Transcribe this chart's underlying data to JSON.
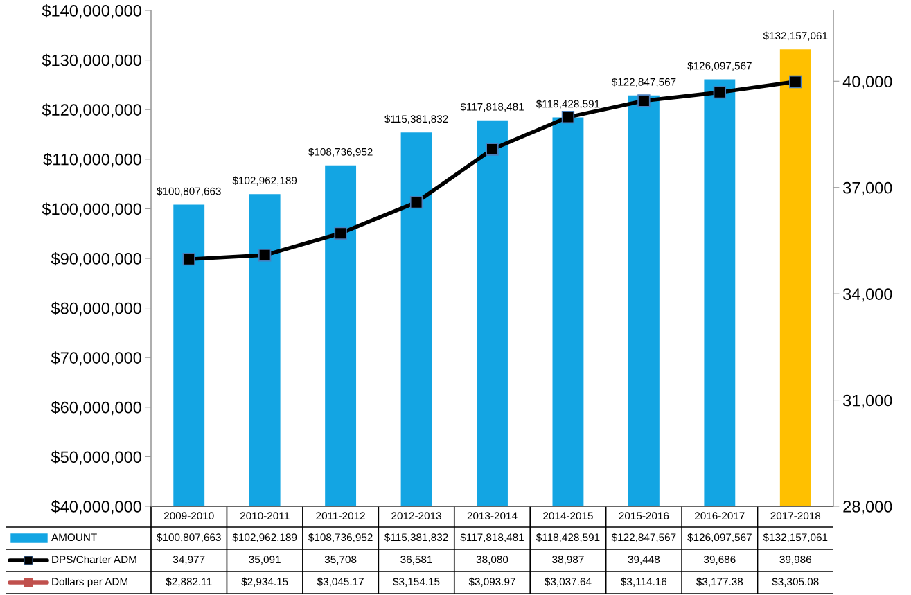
{
  "chart_data": {
    "type": "bar",
    "categories": [
      "2009-2010",
      "2010-2011",
      "2011-2012",
      "2012-2013",
      "2013-2014",
      "2014-2015",
      "2015-2016",
      "2016-2017",
      "2017-2018"
    ],
    "series": [
      {
        "name": "AMOUNT",
        "color": "#13a5e3",
        "colors": [
          "#13a5e3",
          "#13a5e3",
          "#13a5e3",
          "#13a5e3",
          "#13a5e3",
          "#13a5e3",
          "#13a5e3",
          "#13a5e3",
          "#ffc000"
        ],
        "values": [
          100807663,
          102962189,
          108736952,
          115381832,
          117818481,
          118428591,
          122847567,
          126097567,
          132157061
        ],
        "value_labels": [
          "$100,807,663",
          "$102,962,189",
          "$108,736,952",
          "$115,381,832",
          "$117,818,481",
          "$118,428,591",
          "$122,847,567",
          "$126,097,567",
          "$132,157,061"
        ]
      },
      {
        "name": "DPS/Charter ADM",
        "type": "line",
        "axis": "y2",
        "color": "#000000",
        "marker": "square",
        "values": [
          34977,
          35091,
          35708,
          36581,
          38080,
          38987,
          39448,
          39686,
          39986
        ],
        "value_labels": [
          "34,977",
          "35,091",
          "35,708",
          "36,581",
          "38,080",
          "38,987",
          "39,448",
          "39,686",
          "39,986"
        ]
      },
      {
        "name": "Dollars per ADM",
        "type": "line",
        "axis": "y2",
        "color": "#c0504d",
        "marker": "square",
        "values": [
          null,
          null,
          null,
          null,
          null,
          null,
          null,
          null,
          null
        ],
        "value_labels": [
          "$2,882.11",
          "$2,934.15",
          "$3,045.17",
          "$3,154.15",
          "$3,093.97",
          "$3,037.64",
          "$3,114.16",
          "$3,177.38",
          "$3,305.08"
        ]
      }
    ],
    "ylim": [
      40000000,
      140000000
    ],
    "yticks": [
      {
        "value": 40000000,
        "label": "$40,000,000"
      },
      {
        "value": 50000000,
        "label": "$50,000,000"
      },
      {
        "value": 60000000,
        "label": "$60,000,000"
      },
      {
        "value": 70000000,
        "label": "$70,000,000"
      },
      {
        "value": 80000000,
        "label": "$80,000,000"
      },
      {
        "value": 90000000,
        "label": "$90,000,000"
      },
      {
        "value": 100000000,
        "label": "$100,000,000"
      },
      {
        "value": 110000000,
        "label": "$110,000,000"
      },
      {
        "value": 120000000,
        "label": "$120,000,000"
      },
      {
        "value": 130000000,
        "label": "$130,000,000"
      },
      {
        "value": 140000000,
        "label": "$140,000,000"
      }
    ],
    "y2lim": [
      28000,
      42000
    ],
    "y2ticks": [
      {
        "value": 28000,
        "label": "28,000"
      },
      {
        "value": 31000,
        "label": "31,000"
      },
      {
        "value": 34000,
        "label": "34,000"
      },
      {
        "value": 37000,
        "label": "37,000"
      },
      {
        "value": 40000,
        "label": "40,000"
      }
    ],
    "data_labels": true,
    "legend": "bottom",
    "grid": false
  }
}
